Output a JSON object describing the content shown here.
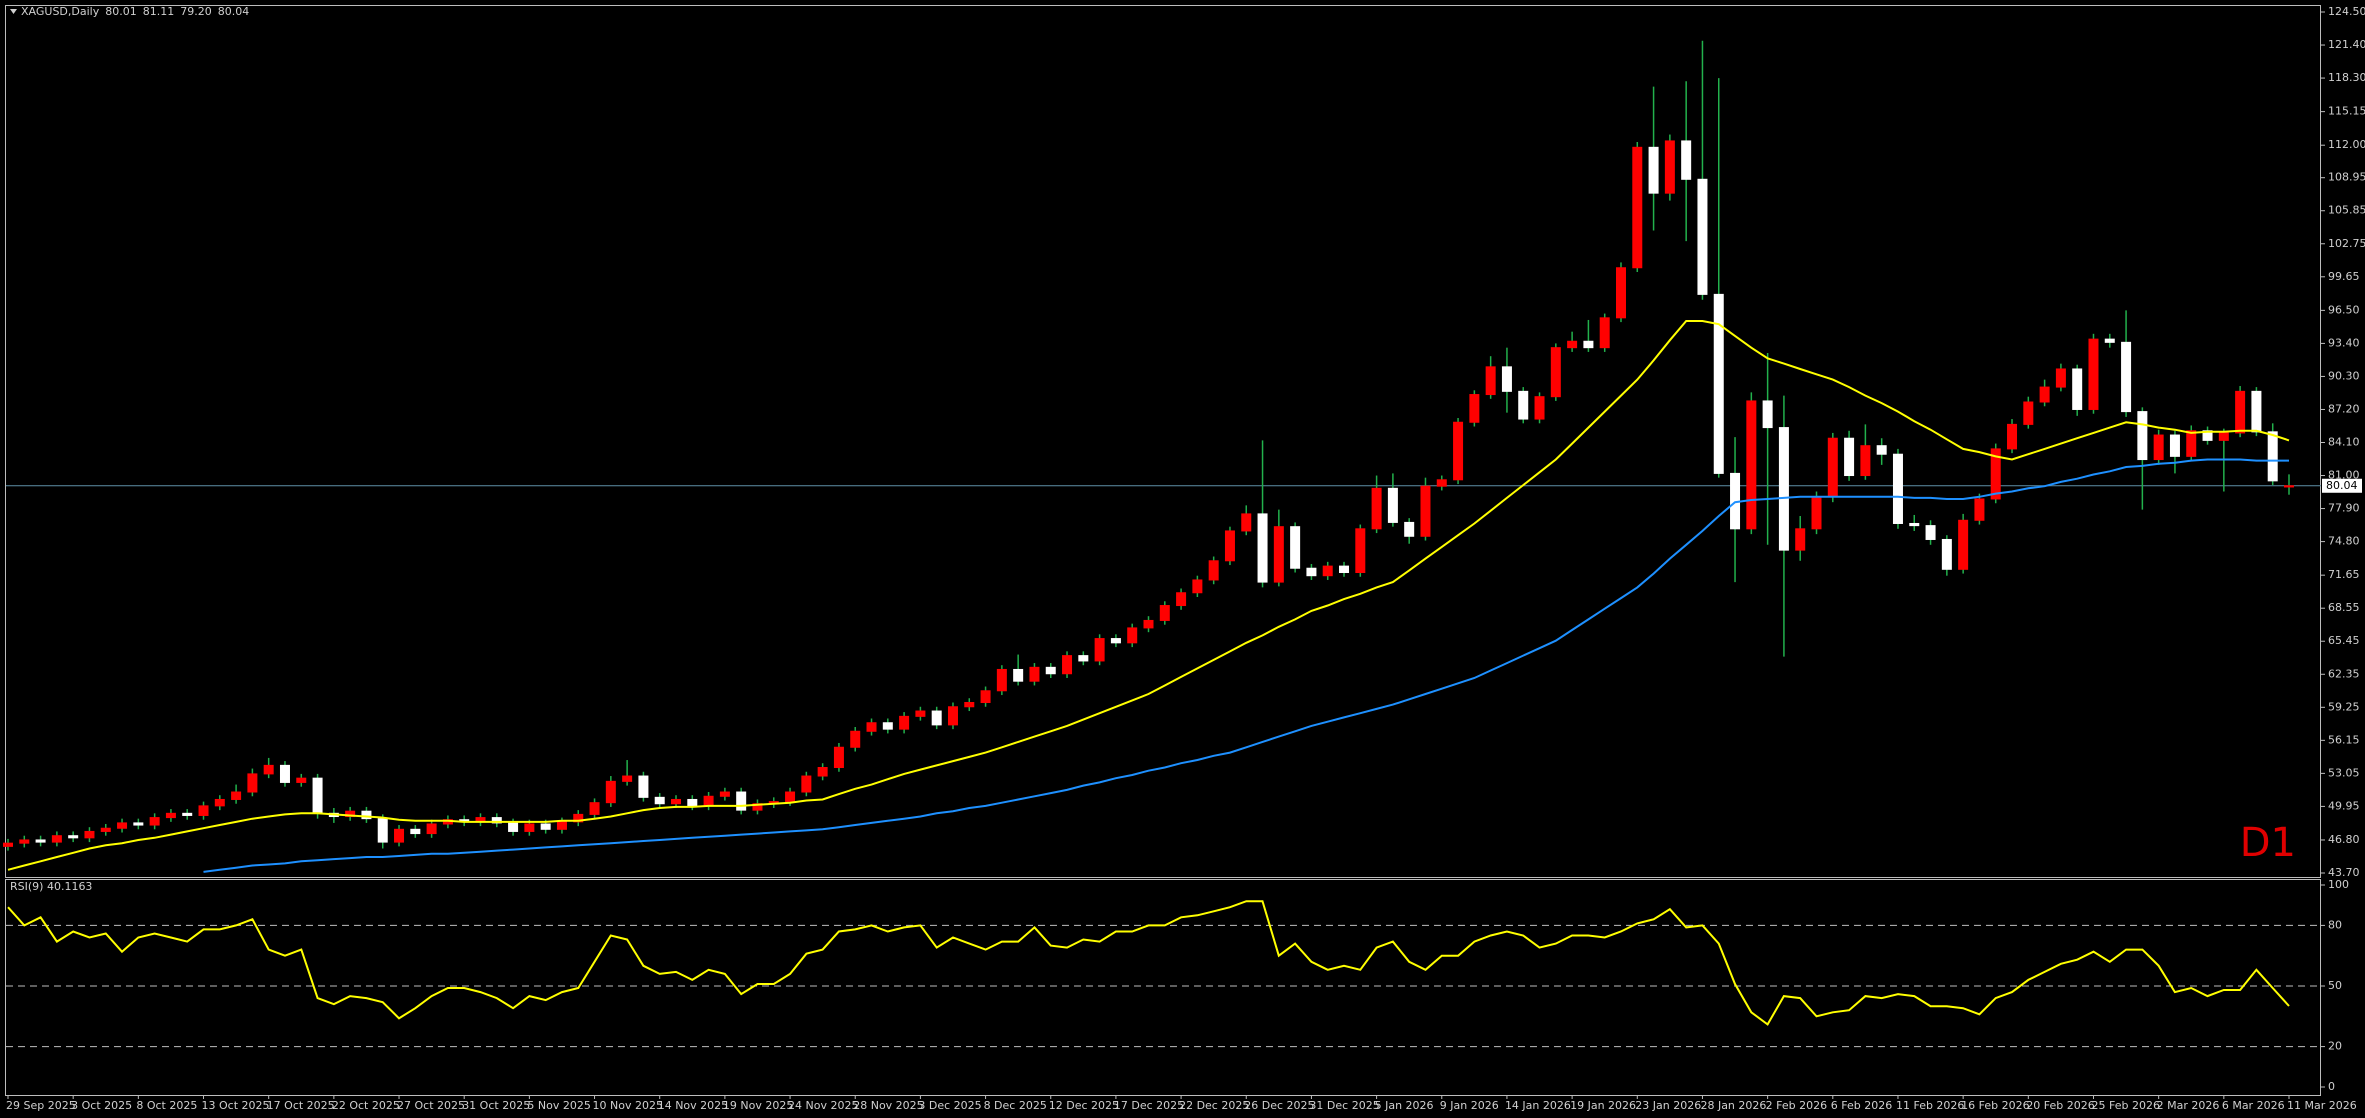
{
  "chart_data": [
    {
      "type": "candlestick",
      "title": "XAGUSD,Daily",
      "ohlc_labels": [
        "80.01",
        "81.11",
        "79.20",
        "80.04"
      ],
      "timeframe_label": "D1",
      "up_color": "#ff0000",
      "down_color": "#ffffff",
      "wick_color": "#22b14c",
      "open": [
        46.2,
        46.5,
        46.8,
        46.6,
        47.2,
        47.0,
        47.6,
        47.9,
        48.4,
        48.2,
        48.9,
        49.3,
        49.1,
        50.0,
        50.6,
        51.3,
        53.0,
        53.8,
        52.2,
        52.6,
        49.3,
        49.0,
        49.5,
        48.8,
        46.6,
        47.8,
        47.4,
        48.3,
        48.7,
        48.5,
        48.9,
        48.4,
        47.6,
        48.3,
        47.8,
        48.5,
        49.2,
        50.3,
        52.3,
        52.8,
        50.8,
        50.2,
        50.6,
        50.0,
        50.9,
        51.3,
        49.6,
        50.2,
        50.4,
        51.3,
        52.8,
        53.6,
        55.5,
        57.0,
        57.8,
        57.2,
        58.4,
        58.9,
        57.6,
        59.3,
        59.7,
        60.8,
        62.8,
        61.7,
        63.0,
        62.4,
        64.1,
        63.6,
        65.7,
        65.3,
        66.7,
        67.4,
        68.8,
        70.0,
        71.2,
        73.0,
        75.8,
        77.4,
        71.0,
        76.2,
        72.3,
        71.6,
        72.5,
        71.9,
        76.0,
        79.8,
        76.6,
        75.3,
        80.0,
        80.6,
        86.0,
        88.6,
        91.2,
        88.9,
        86.3,
        88.4,
        93.0,
        93.6,
        93.0,
        95.8,
        100.5,
        111.8,
        107.5,
        112.4,
        108.8,
        98.0,
        81.2,
        76.0,
        88.0,
        85.5,
        74.0,
        76.0,
        79.0,
        84.5,
        81.0,
        83.8,
        83.0,
        76.5,
        76.3,
        75.0,
        72.2,
        76.8,
        78.8,
        83.5,
        85.8,
        87.9,
        89.3,
        91.0,
        87.2,
        93.8,
        93.5,
        87.0,
        82.5,
        84.8,
        82.8,
        85.2,
        84.3,
        85.0,
        88.9,
        85.1,
        80.01
      ],
      "high": [
        46.9,
        47.2,
        47.2,
        47.6,
        47.6,
        48.0,
        48.3,
        48.8,
        48.8,
        49.3,
        49.7,
        49.7,
        50.4,
        51.0,
        52.0,
        53.5,
        54.5,
        54.2,
        53.0,
        53.0,
        49.8,
        49.9,
        49.9,
        49.2,
        48.2,
        48.2,
        48.7,
        49.1,
        49.1,
        49.3,
        49.3,
        48.8,
        48.7,
        48.7,
        48.9,
        49.6,
        50.7,
        52.8,
        54.3,
        53.2,
        51.2,
        51.0,
        51.0,
        51.3,
        51.7,
        51.7,
        50.6,
        50.8,
        51.7,
        53.2,
        54.0,
        55.9,
        57.4,
        58.2,
        58.2,
        58.8,
        59.3,
        59.3,
        59.7,
        60.1,
        61.2,
        63.2,
        64.2,
        63.4,
        63.4,
        64.5,
        64.5,
        66.1,
        66.1,
        67.1,
        67.8,
        69.2,
        70.4,
        71.6,
        73.4,
        76.2,
        78.2,
        84.3,
        77.8,
        76.6,
        72.7,
        72.9,
        72.9,
        76.4,
        81.0,
        81.2,
        77.0,
        80.8,
        81.0,
        86.4,
        89.0,
        92.2,
        93.0,
        89.3,
        88.8,
        93.4,
        94.5,
        95.6,
        96.2,
        101.0,
        112.3,
        117.5,
        113.0,
        118.0,
        121.8,
        118.3,
        84.6,
        88.8,
        92.5,
        88.5,
        77.2,
        79.5,
        85.0,
        85.2,
        85.8,
        84.5,
        83.5,
        77.3,
        76.8,
        75.4,
        77.4,
        79.3,
        84.0,
        86.3,
        88.4,
        90.0,
        91.5,
        91.4,
        94.3,
        94.3,
        96.5,
        87.4,
        85.3,
        85.2,
        85.7,
        85.6,
        85.4,
        89.4,
        89.3,
        85.9,
        81.11
      ],
      "low": [
        45.8,
        46.1,
        46.2,
        46.2,
        46.6,
        46.6,
        47.2,
        47.5,
        47.8,
        47.8,
        48.5,
        48.7,
        48.7,
        49.6,
        50.2,
        50.9,
        52.6,
        51.8,
        51.8,
        48.8,
        48.4,
        48.6,
        48.4,
        46.0,
        46.2,
        47.0,
        47.0,
        47.9,
        48.1,
        48.1,
        48.0,
        47.2,
        47.2,
        47.4,
        47.4,
        48.1,
        48.8,
        49.9,
        51.9,
        50.4,
        49.8,
        49.8,
        49.6,
        49.6,
        50.5,
        49.2,
        49.2,
        49.8,
        50.0,
        50.9,
        52.4,
        53.2,
        55.1,
        56.6,
        56.8,
        56.8,
        58.0,
        57.2,
        57.2,
        58.9,
        59.3,
        60.4,
        61.3,
        61.3,
        62.0,
        62.0,
        63.2,
        63.2,
        64.9,
        64.9,
        66.3,
        67.0,
        68.4,
        69.6,
        70.8,
        72.6,
        75.4,
        70.5,
        70.6,
        71.9,
        71.2,
        71.2,
        71.5,
        71.5,
        75.6,
        76.2,
        74.6,
        74.9,
        79.6,
        80.2,
        85.6,
        88.2,
        86.9,
        85.9,
        85.9,
        88.0,
        92.6,
        92.6,
        92.6,
        95.4,
        100.1,
        104.0,
        106.8,
        103.0,
        97.5,
        80.8,
        71.0,
        75.5,
        74.5,
        64.0,
        73.0,
        75.5,
        78.5,
        80.5,
        80.6,
        82.0,
        76.0,
        75.8,
        74.5,
        71.6,
        71.8,
        76.4,
        78.4,
        83.1,
        85.4,
        87.5,
        88.9,
        86.6,
        86.8,
        93.0,
        86.5,
        77.8,
        82.0,
        81.2,
        82.4,
        83.9,
        79.5,
        84.6,
        84.7,
        80.1,
        79.2
      ],
      "close": [
        46.5,
        46.8,
        46.6,
        47.2,
        47.0,
        47.6,
        47.9,
        48.4,
        48.2,
        48.9,
        49.3,
        49.1,
        50.0,
        50.6,
        51.3,
        53.0,
        53.8,
        52.2,
        52.6,
        49.3,
        49.0,
        49.5,
        48.8,
        46.6,
        47.8,
        47.4,
        48.3,
        48.7,
        48.5,
        48.9,
        48.4,
        47.6,
        48.3,
        47.8,
        48.5,
        49.2,
        50.3,
        52.3,
        52.8,
        50.8,
        50.2,
        50.6,
        50.0,
        50.9,
        51.3,
        49.6,
        50.2,
        50.4,
        51.3,
        52.8,
        53.6,
        55.5,
        57.0,
        57.8,
        57.2,
        58.4,
        58.9,
        57.6,
        59.3,
        59.7,
        60.8,
        62.8,
        61.7,
        63.0,
        62.4,
        64.1,
        63.6,
        65.7,
        65.3,
        66.7,
        67.4,
        68.8,
        70.0,
        71.2,
        73.0,
        75.8,
        77.4,
        71.0,
        76.2,
        72.3,
        71.6,
        72.5,
        71.9,
        76.0,
        79.8,
        76.6,
        75.3,
        80.0,
        80.6,
        86.0,
        88.6,
        91.2,
        88.9,
        86.3,
        88.4,
        93.0,
        93.6,
        93.0,
        95.8,
        100.5,
        111.8,
        107.5,
        112.4,
        108.8,
        98.0,
        81.2,
        76.0,
        88.0,
        85.5,
        74.0,
        76.0,
        79.0,
        84.5,
        81.0,
        83.8,
        83.0,
        76.5,
        76.3,
        75.0,
        72.2,
        76.8,
        78.8,
        83.5,
        85.8,
        87.9,
        89.3,
        91.0,
        87.2,
        93.8,
        93.5,
        87.0,
        82.5,
        84.8,
        82.8,
        85.2,
        84.3,
        85.0,
        88.9,
        85.1,
        80.5,
        80.04
      ],
      "overlays": [
        {
          "color": "#ffff00",
          "values": [
            44.0,
            44.4,
            44.8,
            45.2,
            45.6,
            46.0,
            46.3,
            46.5,
            46.8,
            47.0,
            47.3,
            47.6,
            47.9,
            48.2,
            48.5,
            48.8,
            49.0,
            49.2,
            49.3,
            49.3,
            49.2,
            49.1,
            49.0,
            48.9,
            48.7,
            48.6,
            48.6,
            48.6,
            48.5,
            48.5,
            48.5,
            48.5,
            48.5,
            48.5,
            48.6,
            48.6,
            48.8,
            49.0,
            49.3,
            49.6,
            49.8,
            49.9,
            49.9,
            50.0,
            50.0,
            50.0,
            50.1,
            50.2,
            50.3,
            50.5,
            50.6,
            51.1,
            51.6,
            52.0,
            52.5,
            53.0,
            53.4,
            53.8,
            54.2,
            54.6,
            55.0,
            55.5,
            56.0,
            56.5,
            57.0,
            57.5,
            58.1,
            58.7,
            59.3,
            59.9,
            60.5,
            61.3,
            62.1,
            62.9,
            63.7,
            64.5,
            65.3,
            66.0,
            66.8,
            67.5,
            68.3,
            68.8,
            69.4,
            69.9,
            70.5,
            71.0,
            72.1,
            73.2,
            74.3,
            75.4,
            76.5,
            77.7,
            78.9,
            80.1,
            81.3,
            82.5,
            84.0,
            85.5,
            87.0,
            88.5,
            90.0,
            91.8,
            93.7,
            95.5,
            95.5,
            95.2,
            94.1,
            93.0,
            92.0,
            91.5,
            91.0,
            90.5,
            90.0,
            89.3,
            88.5,
            87.8,
            87.0,
            86.1,
            85.3,
            84.4,
            83.5,
            83.2,
            82.8,
            82.5,
            83.0,
            83.5,
            84.0,
            84.5,
            85.0,
            85.5,
            86.0,
            85.8,
            85.5,
            85.3,
            85.0,
            85.1,
            85.1,
            85.2,
            85.2,
            84.8,
            84.3
          ]
        },
        {
          "color": "#1e90ff",
          "values": [
            null,
            null,
            null,
            null,
            null,
            null,
            null,
            null,
            null,
            null,
            null,
            null,
            43.8,
            44.0,
            44.2,
            44.4,
            44.5,
            44.6,
            44.8,
            44.9,
            45.0,
            45.1,
            45.2,
            45.2,
            45.3,
            45.4,
            45.5,
            45.5,
            45.6,
            45.7,
            45.8,
            45.9,
            46.0,
            46.1,
            46.2,
            46.3,
            46.4,
            46.5,
            46.6,
            46.7,
            46.8,
            46.9,
            47.0,
            47.1,
            47.2,
            47.3,
            47.4,
            47.5,
            47.6,
            47.7,
            47.8,
            48.0,
            48.2,
            48.4,
            48.6,
            48.8,
            49.0,
            49.3,
            49.5,
            49.8,
            50.0,
            50.3,
            50.6,
            50.9,
            51.2,
            51.5,
            51.9,
            52.2,
            52.6,
            52.9,
            53.3,
            53.6,
            54.0,
            54.3,
            54.7,
            55.0,
            55.5,
            56.0,
            56.5,
            57.0,
            57.5,
            57.9,
            58.3,
            58.7,
            59.1,
            59.5,
            60.0,
            60.5,
            61.0,
            61.5,
            62.0,
            62.7,
            63.4,
            64.1,
            64.8,
            65.5,
            66.5,
            67.5,
            68.5,
            69.5,
            70.5,
            71.8,
            73.2,
            74.5,
            75.8,
            77.2,
            78.5,
            78.7,
            78.8,
            78.9,
            79.0,
            79.0,
            79.0,
            79.0,
            79.0,
            79.0,
            79.0,
            78.9,
            78.9,
            78.8,
            78.8,
            79.0,
            79.3,
            79.5,
            79.8,
            80.0,
            80.4,
            80.7,
            81.1,
            81.4,
            81.8,
            81.9,
            82.1,
            82.2,
            82.4,
            82.5,
            82.5,
            82.5,
            82.4,
            82.4,
            82.4
          ]
        }
      ],
      "current_price": {
        "value": 80.04,
        "label": "80.04",
        "color": "#5f8fa8"
      },
      "ylim": [
        43.7,
        124.5
      ],
      "yticks": [
        {
          "value": 124.5,
          "label": "124.50"
        },
        {
          "value": 121.4,
          "label": "121.40"
        },
        {
          "value": 118.3,
          "label": "118.30"
        },
        115.15,
        {
          "value": 112,
          "label": "112.00"
        },
        108.95,
        105.85,
        102.75,
        99.65,
        {
          "value": 96.5,
          "label": "96.50"
        },
        {
          "value": 93.4,
          "label": "93.40"
        },
        {
          "value": 90.3,
          "label": "90.30"
        },
        {
          "value": 87.2,
          "label": "87.20"
        },
        {
          "value": 84.1,
          "label": "84.10"
        },
        {
          "value": 81,
          "label": "81.00"
        },
        {
          "value": 77.9,
          "label": "77.90"
        },
        {
          "value": 74.8,
          "label": "74.80"
        },
        71.65,
        68.55,
        65.45,
        62.35,
        59.25,
        56.15,
        53.05,
        49.95,
        {
          "value": 46.8,
          "label": "46.80"
        },
        {
          "value": 43.7,
          "label": "43.70"
        }
      ],
      "grid": false
    },
    {
      "type": "line",
      "title": "RSI(9) 40.1163",
      "color": "#ffff00",
      "values": [
        89,
        80,
        84,
        72,
        77,
        74,
        76,
        67,
        74,
        76,
        74,
        72,
        78,
        78,
        80,
        83,
        68,
        65,
        68,
        44,
        41,
        45,
        44,
        42,
        34,
        39,
        45,
        49,
        49,
        47,
        44,
        39,
        45,
        43,
        47,
        49,
        62,
        75,
        73,
        60,
        56,
        57,
        53,
        58,
        56,
        46,
        51,
        51,
        56,
        66,
        68,
        77,
        78,
        80,
        77,
        79,
        80,
        69,
        74,
        71,
        68,
        72,
        72,
        79,
        70,
        69,
        73,
        72,
        77,
        77,
        80,
        80,
        84,
        85,
        87,
        89,
        92,
        92,
        65,
        71,
        62,
        58,
        60,
        58,
        69,
        72,
        62,
        58,
        65,
        65,
        72,
        75,
        77,
        75,
        69,
        71,
        75,
        75,
        74,
        77,
        81,
        83,
        88,
        79,
        80,
        71,
        51,
        37,
        31,
        45,
        44,
        35,
        37,
        38,
        45,
        44,
        46,
        45,
        40,
        40,
        39,
        36,
        44,
        47,
        53,
        57,
        61,
        63,
        67,
        62,
        68,
        68,
        60,
        47,
        49,
        45,
        48,
        48,
        58,
        49,
        40.1163
      ],
      "categories": [
        "29 Sep 2025",
        null,
        null,
        null,
        "3 Oct 2025",
        null,
        null,
        null,
        "8 Oct 2025",
        null,
        null,
        null,
        "13 Oct 2025",
        null,
        null,
        null,
        "17 Oct 2025",
        null,
        null,
        null,
        "22 Oct 2025",
        null,
        null,
        null,
        "27 Oct 2025",
        null,
        null,
        null,
        "31 Oct 2025",
        null,
        null,
        null,
        "5 Nov 2025",
        null,
        null,
        null,
        "10 Nov 2025",
        null,
        null,
        null,
        "14 Nov 2025",
        null,
        null,
        null,
        "19 Nov 2025",
        null,
        null,
        null,
        "24 Nov 2025",
        null,
        null,
        null,
        "28 Nov 2025",
        null,
        null,
        null,
        "3 Dec 2025",
        null,
        null,
        null,
        "8 Dec 2025",
        null,
        null,
        null,
        "12 Dec 2025",
        null,
        null,
        null,
        "17 Dec 2025",
        null,
        null,
        null,
        "22 Dec 2025",
        null,
        null,
        null,
        "26 Dec 2025",
        null,
        null,
        null,
        "31 Dec 2025",
        null,
        null,
        null,
        "5 Jan 2026",
        null,
        null,
        null,
        "9 Jan 2026",
        null,
        null,
        null,
        "14 Jan 2026",
        null,
        null,
        null,
        "19 Jan 2026",
        null,
        null,
        null,
        "23 Jan 2026",
        null,
        null,
        null,
        "28 Jan 2026",
        null,
        null,
        null,
        "2 Feb 2026",
        null,
        null,
        null,
        "6 Feb 2026",
        null,
        null,
        null,
        "11 Feb 2026",
        null,
        null,
        null,
        "16 Feb 2026",
        null,
        null,
        null,
        "20 Feb 2026",
        null,
        null,
        null,
        "25 Feb 2026",
        null,
        null,
        null,
        "2 Mar 2026",
        null,
        null,
        null,
        "6 Mar 2026",
        null,
        null,
        null,
        "11 Mar 2026"
      ],
      "ylim": [
        0,
        100
      ],
      "yticks": [
        0,
        20,
        50,
        80,
        100
      ],
      "levels": [
        20,
        50,
        80
      ]
    }
  ]
}
